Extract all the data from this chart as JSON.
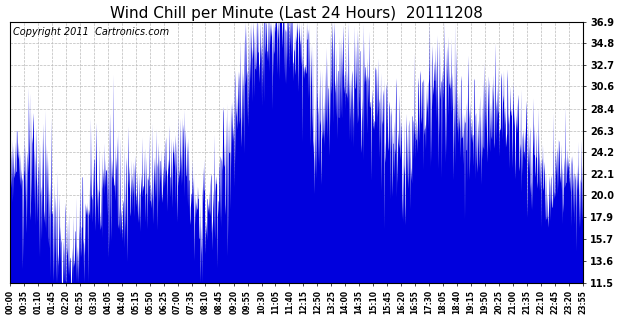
{
  "title": "Wind Chill per Minute (Last 24 Hours)  20111208",
  "copyright_text": "Copyright 2011  Cartronics.com",
  "yticks": [
    11.5,
    13.6,
    15.7,
    17.9,
    20.0,
    22.1,
    24.2,
    26.3,
    28.4,
    30.6,
    32.7,
    34.8,
    36.9
  ],
  "ymin": 11.5,
  "ymax": 36.9,
  "fill_color": "#0000dd",
  "background_color": "#ffffff",
  "grid_color": "#bbbbbb",
  "title_fontsize": 11,
  "copyright_fontsize": 7,
  "xtick_labels": [
    "00:00",
    "00:35",
    "01:10",
    "01:45",
    "02:20",
    "02:55",
    "03:30",
    "04:05",
    "04:40",
    "05:15",
    "05:50",
    "06:25",
    "07:00",
    "07:35",
    "08:10",
    "08:45",
    "09:20",
    "09:55",
    "10:30",
    "11:05",
    "11:40",
    "12:15",
    "12:50",
    "13:25",
    "14:00",
    "14:35",
    "15:10",
    "15:45",
    "16:20",
    "16:55",
    "17:30",
    "18:05",
    "18:40",
    "19:15",
    "19:50",
    "20:25",
    "21:00",
    "21:35",
    "22:10",
    "22:45",
    "23:20",
    "23:55"
  ]
}
